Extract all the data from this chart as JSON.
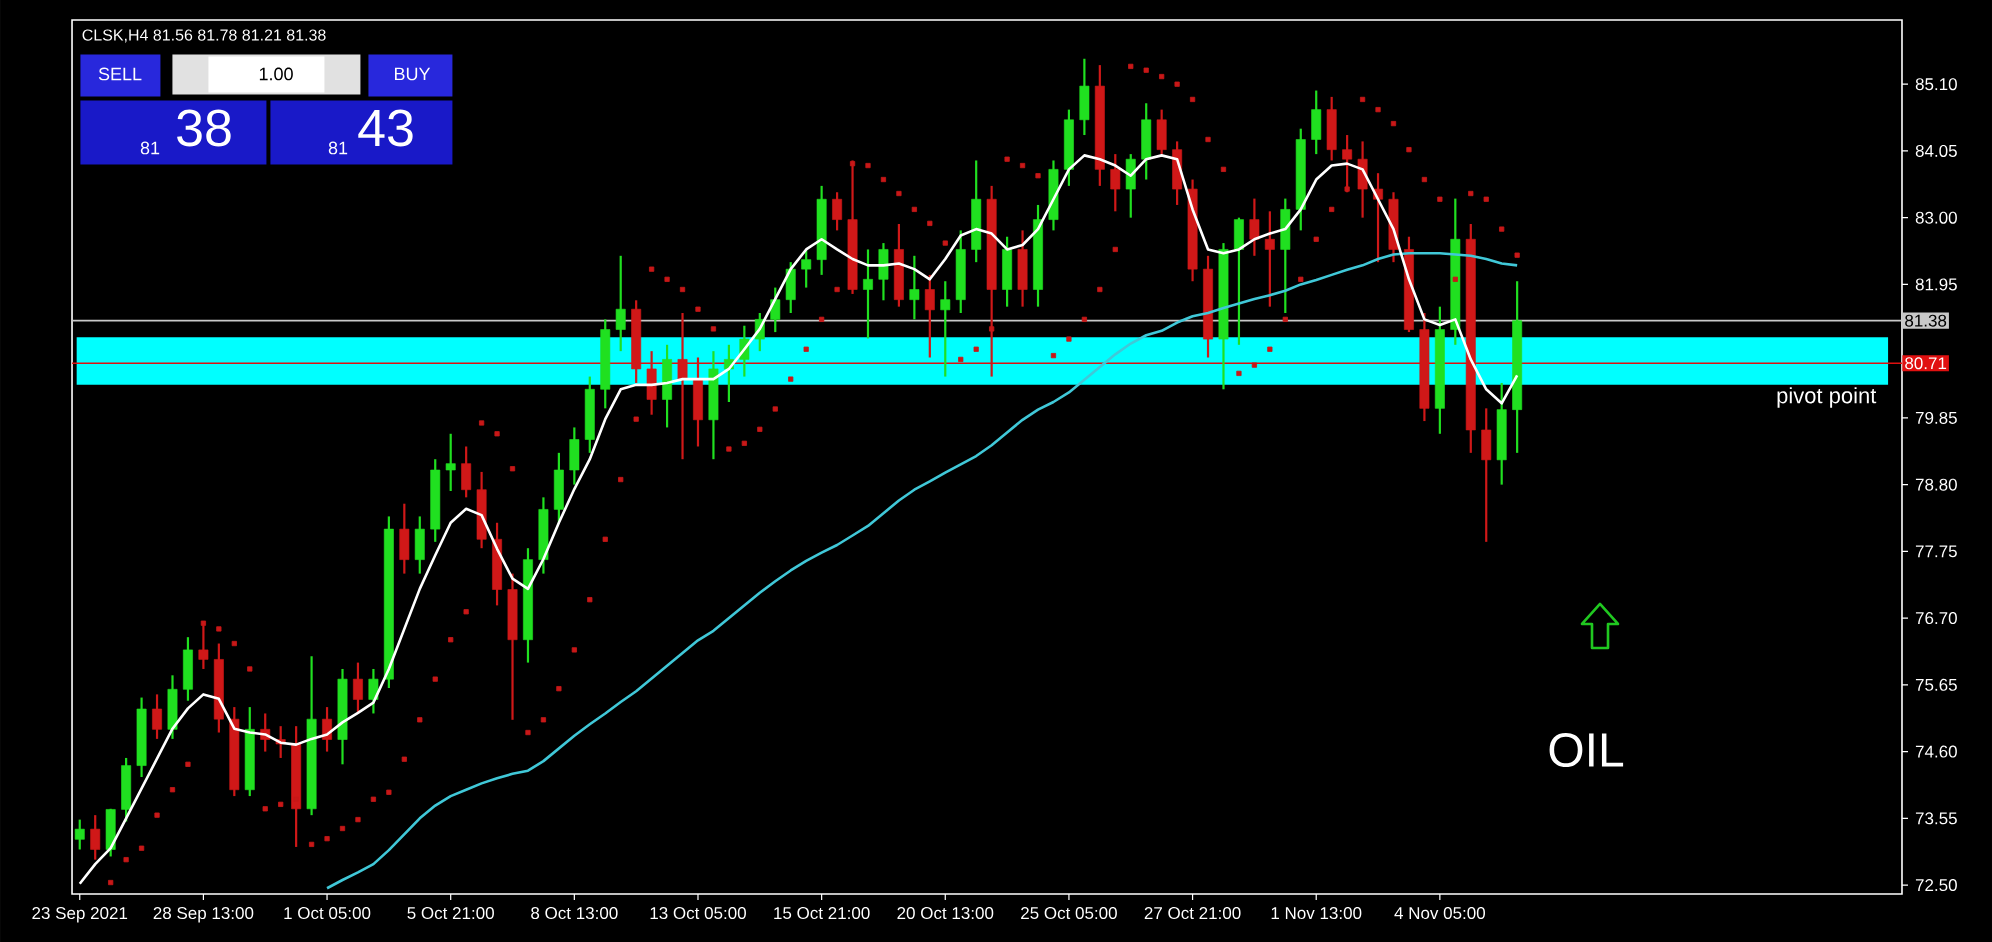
{
  "chart_data": {
    "type": "candlestick",
    "title": "CLSK,H4 81.56 81.78 81.21 81.38",
    "categories": [
      "23 Sep 2021",
      null,
      null,
      null,
      null,
      null,
      null,
      null,
      "28 Sep 13:00",
      null,
      null,
      null,
      null,
      null,
      null,
      null,
      "1 Oct 05:00",
      null,
      null,
      null,
      null,
      null,
      null,
      null,
      "5 Oct 21:00",
      null,
      null,
      null,
      null,
      null,
      null,
      null,
      "8 Oct 13:00",
      null,
      null,
      null,
      null,
      null,
      null,
      null,
      "13 Oct 05:00",
      null,
      null,
      null,
      null,
      null,
      null,
      null,
      "15 Oct 21:00",
      null,
      null,
      null,
      null,
      null,
      null,
      null,
      "20 Oct 13:00",
      null,
      null,
      null,
      null,
      null,
      null,
      null,
      "25 Oct 05:00",
      null,
      null,
      null,
      null,
      null,
      null,
      null,
      "27 Oct 21:00",
      null,
      null,
      null,
      null,
      null,
      null,
      null,
      "1 Nov 13:00",
      null,
      null,
      null,
      null,
      null,
      null,
      null,
      "4 Nov 05:00",
      null,
      null,
      null,
      null,
      null
    ],
    "ohlc": [
      [
        73.22,
        73.53,
        73.06,
        73.38
      ],
      [
        73.38,
        73.6,
        72.9,
        73.06
      ],
      [
        73.06,
        73.7,
        72.95,
        73.69
      ],
      [
        73.69,
        74.5,
        73.5,
        74.38
      ],
      [
        74.38,
        75.45,
        74.2,
        75.27
      ],
      [
        75.27,
        75.5,
        74.8,
        74.95
      ],
      [
        74.95,
        75.8,
        74.8,
        75.58
      ],
      [
        75.58,
        76.4,
        75.4,
        76.2
      ],
      [
        76.2,
        76.6,
        75.9,
        76.05
      ],
      [
        76.05,
        76.3,
        74.9,
        75.11
      ],
      [
        75.11,
        75.3,
        73.9,
        74.0
      ],
      [
        74.0,
        75.3,
        73.9,
        74.95
      ],
      [
        74.95,
        75.2,
        74.6,
        74.79
      ],
      [
        74.79,
        75.0,
        74.5,
        74.72
      ],
      [
        74.72,
        75.0,
        73.1,
        73.7
      ],
      [
        73.7,
        76.1,
        73.6,
        75.11
      ],
      [
        75.11,
        75.3,
        74.6,
        74.79
      ],
      [
        74.79,
        75.9,
        74.4,
        75.74
      ],
      [
        75.74,
        76.0,
        75.2,
        75.42
      ],
      [
        75.42,
        75.9,
        75.2,
        75.74
      ],
      [
        75.74,
        78.3,
        75.6,
        78.1
      ],
      [
        78.1,
        78.5,
        77.4,
        77.62
      ],
      [
        77.62,
        78.3,
        77.4,
        78.1
      ],
      [
        78.1,
        79.2,
        77.9,
        79.03
      ],
      [
        79.03,
        79.6,
        78.7,
        79.13
      ],
      [
        79.13,
        79.4,
        78.6,
        78.72
      ],
      [
        78.72,
        79.0,
        77.8,
        77.94
      ],
      [
        77.94,
        78.2,
        76.9,
        77.15
      ],
      [
        77.15,
        77.4,
        75.1,
        76.36
      ],
      [
        76.36,
        77.8,
        76.0,
        77.62
      ],
      [
        77.62,
        78.6,
        77.4,
        78.41
      ],
      [
        78.41,
        79.3,
        78.2,
        79.03
      ],
      [
        79.03,
        79.7,
        78.8,
        79.51
      ],
      [
        79.51,
        80.5,
        79.3,
        80.3
      ],
      [
        80.3,
        81.4,
        80.0,
        81.24
      ],
      [
        81.24,
        82.4,
        80.9,
        81.56
      ],
      [
        81.56,
        81.7,
        80.4,
        80.62
      ],
      [
        80.62,
        80.9,
        79.9,
        80.14
      ],
      [
        80.14,
        81.0,
        79.7,
        80.77
      ],
      [
        80.77,
        81.5,
        79.2,
        80.46
      ],
      [
        80.46,
        80.8,
        79.4,
        79.82
      ],
      [
        79.82,
        80.9,
        79.2,
        80.62
      ],
      [
        80.62,
        81.0,
        80.1,
        80.77
      ],
      [
        80.77,
        81.3,
        80.5,
        81.09
      ],
      [
        81.09,
        81.5,
        80.9,
        81.4
      ],
      [
        81.4,
        81.9,
        81.2,
        81.71
      ],
      [
        81.71,
        82.3,
        81.5,
        82.19
      ],
      [
        82.19,
        82.5,
        81.9,
        82.34
      ],
      [
        82.34,
        83.5,
        82.1,
        83.29
      ],
      [
        83.29,
        83.4,
        82.8,
        82.97
      ],
      [
        82.97,
        83.9,
        81.8,
        81.87
      ],
      [
        81.87,
        82.5,
        81.1,
        82.03
      ],
      [
        82.03,
        82.6,
        81.7,
        82.5
      ],
      [
        82.5,
        82.9,
        81.6,
        81.71
      ],
      [
        81.71,
        82.4,
        81.4,
        81.87
      ],
      [
        81.87,
        82.1,
        80.8,
        81.55
      ],
      [
        81.55,
        82.0,
        80.5,
        81.71
      ],
      [
        81.71,
        82.8,
        81.5,
        82.5
      ],
      [
        82.5,
        83.9,
        82.3,
        83.29
      ],
      [
        83.29,
        83.5,
        80.5,
        81.87
      ],
      [
        81.87,
        82.7,
        81.6,
        82.5
      ],
      [
        82.5,
        82.8,
        81.6,
        81.87
      ],
      [
        81.87,
        83.2,
        81.6,
        82.97
      ],
      [
        82.97,
        83.9,
        82.8,
        83.76
      ],
      [
        83.76,
        84.7,
        83.5,
        84.54
      ],
      [
        84.54,
        85.5,
        84.3,
        85.07
      ],
      [
        85.07,
        85.4,
        83.5,
        83.76
      ],
      [
        83.76,
        84.0,
        83.1,
        83.45
      ],
      [
        83.45,
        84.0,
        83.0,
        83.92
      ],
      [
        83.92,
        84.8,
        83.6,
        84.54
      ],
      [
        84.54,
        84.7,
        84.0,
        84.07
      ],
      [
        84.07,
        84.2,
        83.2,
        83.45
      ],
      [
        83.45,
        83.6,
        82.0,
        82.19
      ],
      [
        82.19,
        82.4,
        80.8,
        81.09
      ],
      [
        81.09,
        82.6,
        80.3,
        82.5
      ],
      [
        82.5,
        83.0,
        81.0,
        82.97
      ],
      [
        82.97,
        83.3,
        82.4,
        82.66
      ],
      [
        82.66,
        83.1,
        81.6,
        82.5
      ],
      [
        82.5,
        83.3,
        81.5,
        83.13
      ],
      [
        83.13,
        84.4,
        82.8,
        84.23
      ],
      [
        84.23,
        85.0,
        84.0,
        84.7
      ],
      [
        84.7,
        84.9,
        83.9,
        84.07
      ],
      [
        84.07,
        84.3,
        83.4,
        83.92
      ],
      [
        83.92,
        84.2,
        83.0,
        83.45
      ],
      [
        83.45,
        83.7,
        82.3,
        83.29
      ],
      [
        83.29,
        83.4,
        82.3,
        82.5
      ],
      [
        82.5,
        82.7,
        81.2,
        81.24
      ],
      [
        81.24,
        81.5,
        79.8,
        80.0
      ],
      [
        80.0,
        81.6,
        79.6,
        81.24
      ],
      [
        81.24,
        83.3,
        81.0,
        82.66
      ],
      [
        82.66,
        82.9,
        79.3,
        79.66
      ],
      [
        79.66,
        80.0,
        77.9,
        79.19
      ],
      [
        79.19,
        80.4,
        78.8,
        79.98
      ],
      [
        79.98,
        82.0,
        79.3,
        81.38
      ]
    ],
    "colors": [
      "#20e020",
      "#d01818",
      "#20e020",
      "#20e020",
      "#20e020",
      "#d01818",
      "#20e020",
      "#20e020",
      "#d01818",
      "#d01818",
      "#d01818",
      "#20e020",
      "#d01818",
      "#d01818",
      "#d01818",
      "#20e020",
      "#d01818",
      "#20e020",
      "#d01818",
      "#20e020",
      "#20e020",
      "#d01818",
      "#20e020",
      "#20e020",
      "#20e020",
      "#d01818",
      "#d01818",
      "#d01818",
      "#d01818",
      "#20e020",
      "#20e020",
      "#20e020",
      "#20e020",
      "#20e020",
      "#20e020",
      "#20e020",
      "#d01818",
      "#d01818",
      "#20e020",
      "#d01818",
      "#d01818",
      "#20e020",
      "#20e020",
      "#20e020",
      "#20e020",
      "#20e020",
      "#20e020",
      "#20e020",
      "#20e020",
      "#d01818",
      "#d01818",
      "#20e020",
      "#20e020",
      "#d01818",
      "#20e020",
      "#d01818",
      "#20e020",
      "#20e020",
      "#20e020",
      "#d01818",
      "#20e020",
      "#d01818",
      "#20e020",
      "#20e020",
      "#20e020",
      "#20e020",
      "#d01818",
      "#d01818",
      "#20e020",
      "#20e020",
      "#d01818",
      "#d01818",
      "#d01818",
      "#d01818",
      "#20e020",
      "#20e020",
      "#d01818",
      "#d01818",
      "#20e020",
      "#20e020",
      "#20e020",
      "#d01818",
      "#d01818",
      "#d01818",
      "#d01818",
      "#d01818",
      "#d01818",
      "#d01818",
      "#20e020",
      "#20e020",
      "#d01818",
      "#d01818",
      "#20e020",
      "#20e020"
    ],
    "series": [
      {
        "type": "line",
        "color": "#40c8d8",
        "values": [
          null,
          null,
          null,
          null,
          null,
          null,
          null,
          null,
          null,
          null,
          null,
          null,
          null,
          null,
          null,
          null,
          72.45,
          72.58,
          72.7,
          72.83,
          73.05,
          73.3,
          73.55,
          73.75,
          73.9,
          74.0,
          74.1,
          74.18,
          74.25,
          74.3,
          74.45,
          74.65,
          74.85,
          75.03,
          75.2,
          75.38,
          75.55,
          75.75,
          75.95,
          76.15,
          76.35,
          76.5,
          76.7,
          76.9,
          77.1,
          77.28,
          77.45,
          77.6,
          77.73,
          77.85,
          78.0,
          78.15,
          78.35,
          78.55,
          78.72,
          78.85,
          78.99,
          79.12,
          79.25,
          79.42,
          79.62,
          79.82,
          79.98,
          80.1,
          80.25,
          80.45,
          80.65,
          80.85,
          81.02,
          81.15,
          81.22,
          81.35,
          81.45,
          81.5,
          81.58,
          81.65,
          81.72,
          81.78,
          81.85,
          81.95,
          82.02,
          82.1,
          82.18,
          82.25,
          82.35,
          82.42,
          82.44,
          82.44,
          82.44,
          82.42,
          82.4,
          82.35,
          82.28,
          82.25
        ]
      },
      {
        "type": "line",
        "color": "#ffffff",
        "values": [
          72.52,
          72.83,
          73.08,
          73.55,
          74.02,
          74.49,
          74.96,
          75.28,
          75.5,
          75.43,
          74.96,
          74.9,
          74.87,
          74.74,
          74.71,
          74.8,
          74.87,
          75.06,
          75.21,
          75.37,
          75.9,
          76.53,
          77.16,
          77.69,
          78.2,
          78.42,
          78.32,
          77.79,
          77.32,
          77.16,
          77.63,
          78.2,
          78.73,
          79.2,
          79.83,
          80.3,
          80.37,
          80.37,
          80.4,
          80.46,
          80.46,
          80.46,
          80.62,
          80.93,
          81.25,
          81.72,
          82.19,
          82.5,
          82.66,
          82.5,
          82.35,
          82.25,
          82.25,
          82.28,
          82.19,
          82.03,
          82.35,
          82.72,
          82.82,
          82.75,
          82.5,
          82.57,
          82.82,
          83.29,
          83.76,
          83.98,
          83.92,
          83.82,
          83.66,
          83.92,
          83.98,
          83.92,
          83.13,
          82.5,
          82.44,
          82.5,
          82.66,
          82.75,
          82.82,
          83.13,
          83.6,
          83.82,
          83.85,
          83.76,
          83.29,
          82.82,
          82.03,
          81.4,
          81.31,
          81.4,
          80.77,
          80.3,
          80.08,
          80.52
        ]
      },
      {
        "type": "scatter",
        "color": "#c81818",
        "marker": "square",
        "values": [
          null,
          null,
          72.54,
          72.9,
          73.08,
          73.6,
          74.0,
          74.4,
          76.62,
          76.53,
          76.3,
          75.9,
          73.7,
          73.77,
          73.85,
          73.14,
          73.23,
          73.39,
          73.53,
          73.85,
          73.96,
          74.48,
          75.1,
          75.74,
          76.36,
          76.8,
          79.77,
          79.6,
          79.05,
          74.9,
          75.1,
          75.59,
          76.2,
          76.99,
          77.94,
          78.88,
          79.83,
          82.19,
          82.03,
          81.87,
          81.56,
          81.25,
          79.36,
          79.45,
          79.67,
          79.99,
          80.46,
          80.93,
          81.4,
          81.87,
          83.85,
          83.82,
          83.6,
          83.38,
          83.13,
          82.91,
          82.6,
          80.77,
          80.93,
          81.25,
          83.92,
          83.82,
          83.66,
          80.83,
          81.09,
          81.4,
          81.87,
          82.5,
          85.38,
          85.32,
          85.22,
          85.1,
          84.86,
          84.23,
          83.76,
          80.55,
          80.68,
          80.93,
          81.4,
          82.03,
          82.66,
          83.13,
          83.45,
          84.86,
          84.7,
          84.48,
          84.07,
          83.6,
          83.29,
          82.03,
          83.38,
          83.29,
          82.82,
          82.41
        ]
      }
    ],
    "ylim": [
      72.36,
      86.11
    ],
    "yticks": [
      {
        "value": 72.5,
        "label": "72.50"
      },
      {
        "value": 73.55,
        "label": "73.55"
      },
      {
        "value": 74.6,
        "label": "74.60"
      },
      {
        "value": 75.65,
        "label": "75.65"
      },
      {
        "value": 76.7,
        "label": "76.70"
      },
      {
        "value": 77.75,
        "label": "77.75"
      },
      {
        "value": 78.8,
        "label": "78.80"
      },
      {
        "value": 79.85,
        "label": "79.85"
      },
      {
        "value": 81.95,
        "label": "81.95"
      },
      {
        "value": 83.0,
        "label": "83.00"
      },
      {
        "value": 84.05,
        "label": "84.05"
      },
      {
        "value": 85.1,
        "label": "85.10"
      }
    ],
    "bands": [
      {
        "axis": "y",
        "from": 80.37,
        "to": 81.12,
        "label": "pivot point",
        "color": "#00ffff"
      }
    ],
    "ref_lines": [
      {
        "axis": "y",
        "value": 81.38,
        "label": "81.38",
        "color": "#c8c8c8"
      },
      {
        "axis": "y",
        "value": 80.71,
        "label": "80.71",
        "color": "#e01010"
      }
    ],
    "annotations": [
      "SELL",
      "1.00",
      "BUY",
      "81",
      "38",
      "81",
      "43",
      "OIL"
    ]
  }
}
